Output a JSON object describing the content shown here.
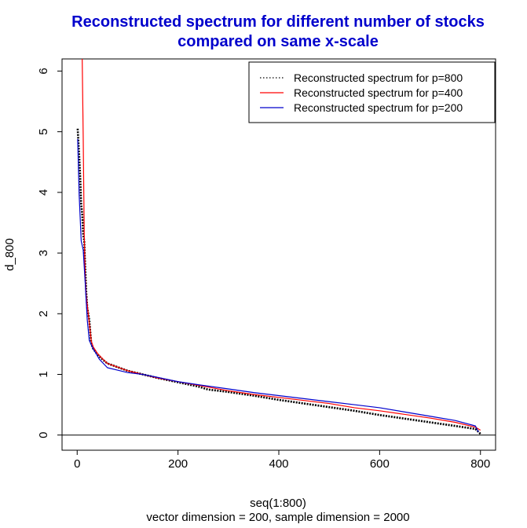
{
  "chart_data": {
    "type": "line",
    "title_lines": [
      "Reconstructed spectrum for different number of stocks",
      "compared on same x-scale"
    ],
    "xlabel": "seq(1:800)",
    "sublabel": "vector dimension = 200, sample dimension = 2000",
    "ylabel": "d_800",
    "xlim": [
      -30,
      830
    ],
    "ylim": [
      -0.25,
      6.2
    ],
    "x_ticks": [
      0,
      200,
      400,
      600,
      800
    ],
    "y_ticks": [
      0,
      1,
      2,
      3,
      4,
      5,
      6
    ],
    "hline": 0,
    "legend_position": "top-right",
    "series": [
      {
        "name": "Reconstructed spectrum for p=800",
        "color": "#000000",
        "style": "dotted",
        "x": [
          1,
          4,
          6,
          8,
          10,
          12,
          14,
          16,
          18,
          20,
          24,
          28,
          32,
          40,
          50,
          60,
          80,
          100,
          130,
          160,
          200,
          240,
          260,
          300,
          350,
          400,
          450,
          500,
          550,
          600,
          650,
          700,
          750,
          790,
          800
        ],
        "y": [
          5.05,
          4.6,
          4.25,
          3.8,
          3.65,
          3.3,
          3.2,
          2.75,
          2.35,
          2.1,
          1.9,
          1.5,
          1.42,
          1.33,
          1.25,
          1.18,
          1.12,
          1.06,
          1.0,
          0.94,
          0.87,
          0.8,
          0.75,
          0.71,
          0.65,
          0.58,
          0.52,
          0.46,
          0.4,
          0.33,
          0.27,
          0.21,
          0.15,
          0.1,
          0.02
        ]
      },
      {
        "name": "Reconstructed spectrum for p=400",
        "color": "#ff0000",
        "style": "solid",
        "x": [
          10,
          12,
          14,
          16,
          18,
          20,
          22,
          24,
          28,
          32,
          40,
          50,
          60,
          80,
          100,
          130,
          160,
          200,
          240,
          300,
          350,
          400,
          450,
          500,
          550,
          600,
          650,
          700,
          750,
          790,
          800
        ],
        "y": [
          6.2,
          4.9,
          3.3,
          2.6,
          2.3,
          2.15,
          2.0,
          1.85,
          1.55,
          1.45,
          1.35,
          1.26,
          1.18,
          1.12,
          1.06,
          1.0,
          0.94,
          0.88,
          0.82,
          0.73,
          0.67,
          0.62,
          0.57,
          0.52,
          0.45,
          0.4,
          0.34,
          0.28,
          0.21,
          0.13,
          0.08
        ]
      },
      {
        "name": "Reconstructed spectrum for p=200",
        "color": "#0000cc",
        "style": "solid",
        "x": [
          1,
          4,
          8,
          12,
          16,
          20,
          24,
          32,
          44,
          60,
          80,
          100,
          130,
          160,
          200,
          240,
          300,
          350,
          400,
          450,
          500,
          550,
          600,
          650,
          700,
          750,
          790,
          796
        ],
        "y": [
          4.88,
          3.95,
          3.2,
          3.05,
          2.5,
          1.9,
          1.56,
          1.42,
          1.25,
          1.11,
          1.07,
          1.03,
          1.0,
          0.95,
          0.88,
          0.83,
          0.76,
          0.7,
          0.65,
          0.6,
          0.55,
          0.5,
          0.45,
          0.38,
          0.31,
          0.24,
          0.15,
          0.05
        ]
      }
    ]
  }
}
